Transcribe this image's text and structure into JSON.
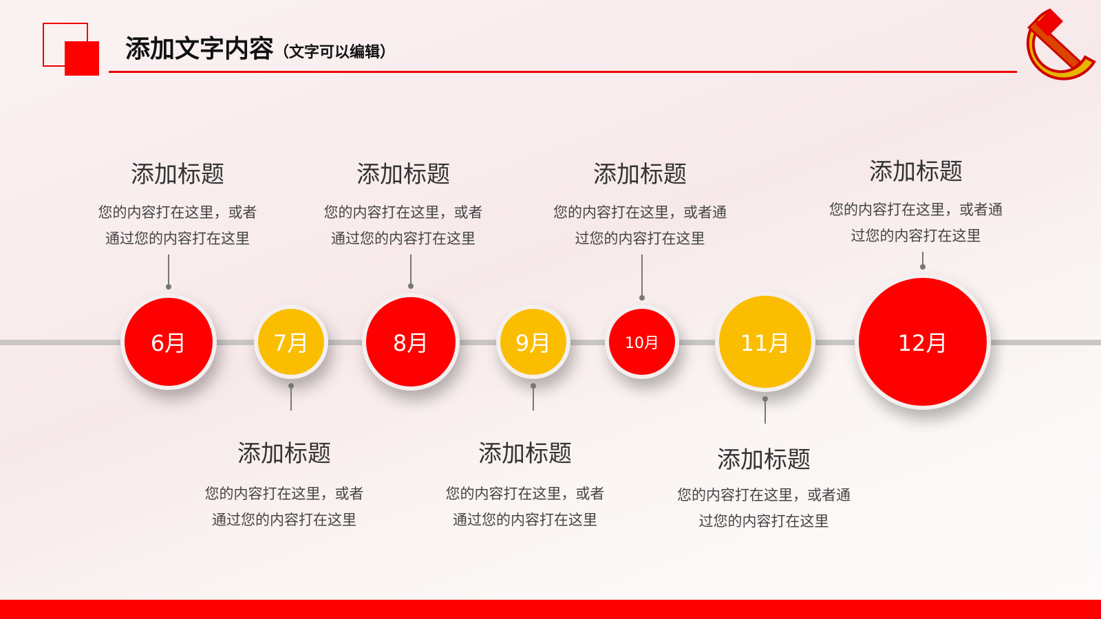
{
  "header": {
    "title": "添加文字内容",
    "subtitle": "（文字可以编辑）"
  },
  "timeline": [
    {
      "month": "6月",
      "title": "添加标题",
      "lines": [
        "您的内容打在这里，或者",
        "通过您的内容打在这里"
      ]
    },
    {
      "month": "7月",
      "title": "添加标题",
      "lines": [
        "您的内容打在这里，或者",
        "通过您的内容打在这里"
      ]
    },
    {
      "month": "8月",
      "title": "添加标题",
      "lines": [
        "您的内容打在这里，或者",
        "通过您的内容打在这里"
      ]
    },
    {
      "month": "9月",
      "title": "添加标题",
      "lines": [
        "您的内容打在这里，或者",
        "通过您的内容打在这里"
      ]
    },
    {
      "month": "10月",
      "title": "添加标题",
      "lines": [
        "您的内容打在这里，或者通",
        "过您的内容打在这里"
      ]
    },
    {
      "month": "11月",
      "title": "添加标题",
      "lines": [
        "您的内容打在这里，或者通",
        "过您的内容打在这里"
      ]
    },
    {
      "month": "12月",
      "title": "添加标题",
      "lines": [
        "您的内容打在这里，或者通",
        "过您的内容打在这里"
      ]
    }
  ]
}
